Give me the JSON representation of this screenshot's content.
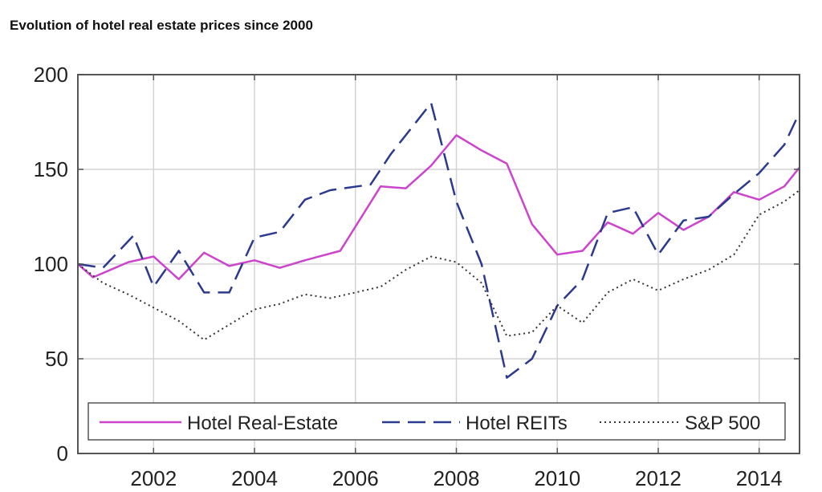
{
  "chart_data": {
    "type": "line",
    "title": "Evolution of hotel real estate prices since 2000",
    "xlabel": "",
    "ylabel": "",
    "xlim": [
      2000.5,
      2014.8
    ],
    "ylim": [
      0,
      200
    ],
    "x_ticks": [
      2002,
      2004,
      2006,
      2008,
      2010,
      2012,
      2014
    ],
    "y_ticks": [
      0,
      50,
      100,
      150,
      200
    ],
    "x_tick_labels": [
      "2002",
      "2004",
      "2006",
      "2008",
      "2010",
      "2012",
      "2014"
    ],
    "y_tick_labels": [
      "0",
      "50",
      "100",
      "150",
      "200"
    ],
    "grid": true,
    "legend_position": "bottom",
    "series": [
      {
        "name": "Hotel Real-Estate",
        "color": "#cc44cc",
        "style": "solid",
        "points": [
          [
            2000.5,
            100
          ],
          [
            2000.8,
            93
          ],
          [
            2001.5,
            101
          ],
          [
            2002.0,
            104
          ],
          [
            2002.5,
            92
          ],
          [
            2003.0,
            106
          ],
          [
            2003.5,
            99
          ],
          [
            2004.0,
            102
          ],
          [
            2004.5,
            98
          ],
          [
            2005.0,
            102
          ],
          [
            2005.7,
            107
          ],
          [
            2006.5,
            141
          ],
          [
            2007.0,
            140
          ],
          [
            2007.5,
            152
          ],
          [
            2008.0,
            168
          ],
          [
            2008.5,
            160
          ],
          [
            2009.0,
            153
          ],
          [
            2009.5,
            121
          ],
          [
            2010.0,
            105
          ],
          [
            2010.5,
            107
          ],
          [
            2011.0,
            122
          ],
          [
            2011.5,
            116
          ],
          [
            2012.0,
            127
          ],
          [
            2012.5,
            118
          ],
          [
            2013.0,
            125
          ],
          [
            2013.5,
            138
          ],
          [
            2014.0,
            134
          ],
          [
            2014.5,
            141
          ],
          [
            2014.8,
            151
          ]
        ]
      },
      {
        "name": "Hotel REITs",
        "color": "#2b3a8f",
        "style": "dashed",
        "points": [
          [
            2000.5,
            100
          ],
          [
            2001.0,
            98
          ],
          [
            2001.6,
            115
          ],
          [
            2002.0,
            88
          ],
          [
            2002.5,
            107
          ],
          [
            2003.0,
            85
          ],
          [
            2003.5,
            85
          ],
          [
            2004.0,
            114
          ],
          [
            2004.5,
            117
          ],
          [
            2005.0,
            134
          ],
          [
            2005.5,
            139
          ],
          [
            2006.3,
            142
          ],
          [
            2006.7,
            158
          ],
          [
            2007.5,
            185
          ],
          [
            2008.0,
            133
          ],
          [
            2008.5,
            100
          ],
          [
            2009.0,
            40
          ],
          [
            2009.5,
            50
          ],
          [
            2010.0,
            78
          ],
          [
            2010.5,
            92
          ],
          [
            2011.0,
            127
          ],
          [
            2011.5,
            130
          ],
          [
            2012.0,
            105
          ],
          [
            2012.5,
            123
          ],
          [
            2013.0,
            125
          ],
          [
            2013.5,
            137
          ],
          [
            2014.0,
            148
          ],
          [
            2014.5,
            163
          ],
          [
            2014.8,
            180
          ]
        ]
      },
      {
        "name": "S&P 500",
        "color": "#333333",
        "style": "dotted",
        "points": [
          [
            2000.5,
            100
          ],
          [
            2001.0,
            90
          ],
          [
            2001.5,
            84
          ],
          [
            2002.0,
            77
          ],
          [
            2002.5,
            70
          ],
          [
            2003.0,
            60
          ],
          [
            2003.5,
            68
          ],
          [
            2004.0,
            76
          ],
          [
            2004.5,
            79
          ],
          [
            2005.0,
            84
          ],
          [
            2005.5,
            82
          ],
          [
            2006.0,
            85
          ],
          [
            2006.5,
            88
          ],
          [
            2007.0,
            97
          ],
          [
            2007.5,
            104
          ],
          [
            2008.0,
            101
          ],
          [
            2008.5,
            90
          ],
          [
            2009.0,
            62
          ],
          [
            2009.5,
            64
          ],
          [
            2010.0,
            78
          ],
          [
            2010.5,
            69
          ],
          [
            2011.0,
            85
          ],
          [
            2011.5,
            92
          ],
          [
            2012.0,
            86
          ],
          [
            2012.5,
            92
          ],
          [
            2013.0,
            97
          ],
          [
            2013.5,
            105
          ],
          [
            2014.0,
            126
          ],
          [
            2014.5,
            133
          ],
          [
            2014.8,
            139
          ]
        ]
      }
    ]
  }
}
